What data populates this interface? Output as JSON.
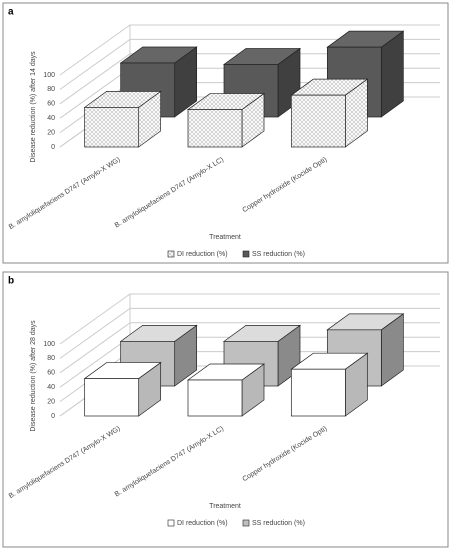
{
  "chart_data": [
    {
      "type": "bar3d",
      "panel_label": "a",
      "y_label": "Disease reduction (%) after 14 days",
      "x_label": "Treatment",
      "categories": [
        "B. amyloliquefaciens D747 (Amylo-X WG)",
        "B. amyloliquefaciens D747 (Amylo-X LC)",
        "Copper hydroxide (Kocide Opti)"
      ],
      "series": [
        {
          "name": "DI reduction (%)",
          "color": "#ffffff",
          "hatch": true,
          "values": [
            55,
            52,
            72
          ]
        },
        {
          "name": "SS reduction (%)",
          "color": "#595959",
          "hatch": false,
          "values": [
            75,
            73,
            97
          ]
        }
      ],
      "ylim": [
        0,
        100
      ],
      "yticks": [
        0,
        20,
        40,
        60,
        80,
        100
      ],
      "grid": true
    },
    {
      "type": "bar3d",
      "panel_label": "b",
      "y_label": "Disease reduction (%) after 28 days",
      "x_label": "Treatment",
      "categories": [
        "B. amyloliquefaciens D747 (Amylo-X WG)",
        "B. amyloliquefaciens D747 (Amylo-X LC)",
        "Copper hydroxide (Kocide Opti)"
      ],
      "series": [
        {
          "name": "DI reduction (%)",
          "color": "#ffffff",
          "hatch": false,
          "values": [
            52,
            50,
            65
          ]
        },
        {
          "name": "SS reduction (%)",
          "color": "#bfbfbf",
          "hatch": false,
          "values": [
            62,
            62,
            78
          ]
        }
      ],
      "ylim": [
        0,
        100
      ],
      "yticks": [
        0,
        20,
        40,
        60,
        80,
        100
      ],
      "grid": true
    }
  ]
}
